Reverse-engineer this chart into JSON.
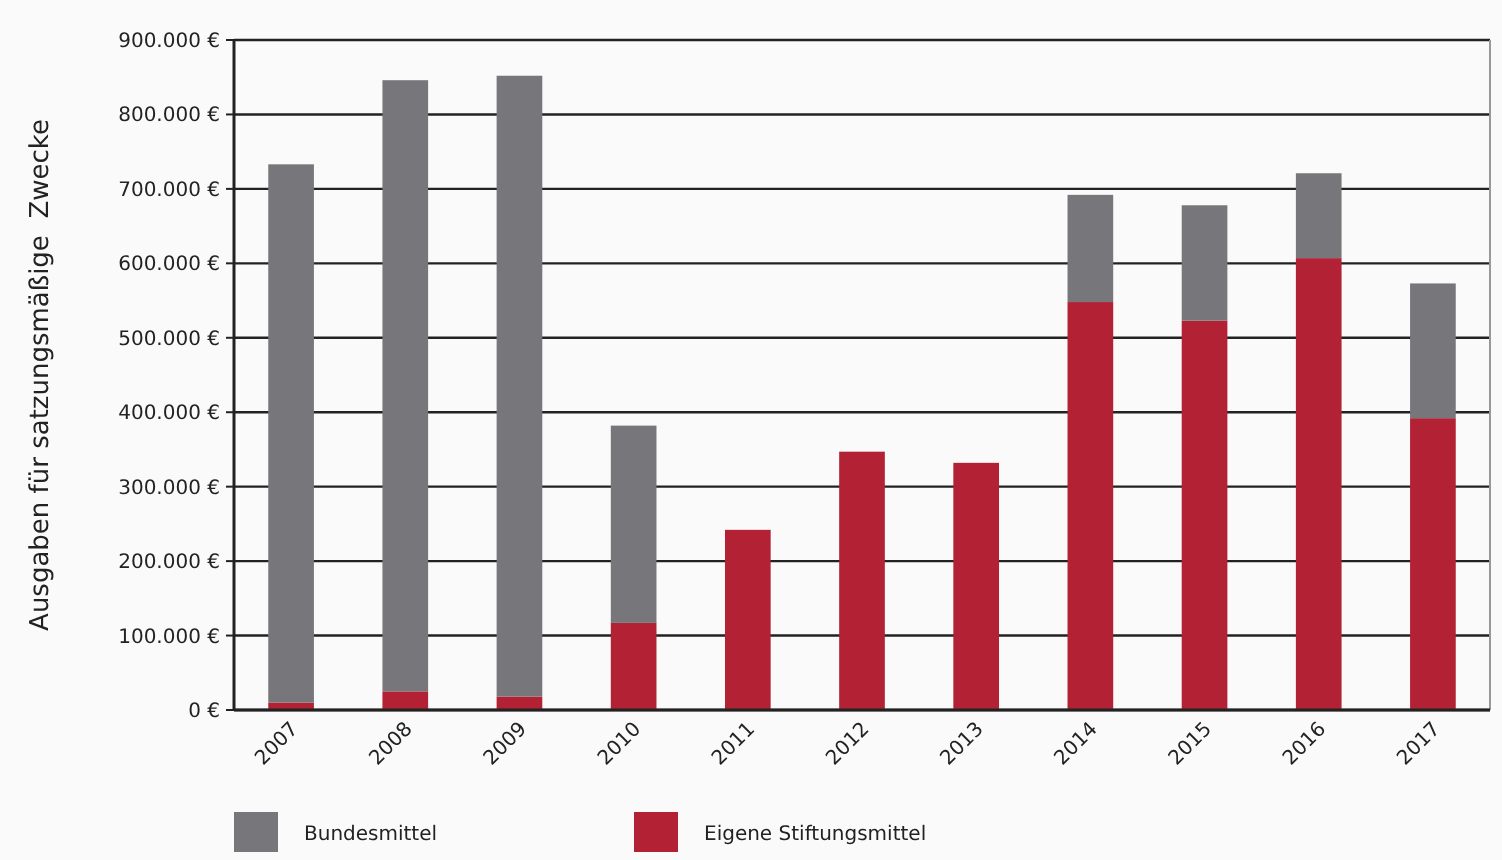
{
  "chart_data": {
    "type": "bar",
    "stacked": true,
    "ylabel": "Ausgaben für satzungsmäßige  Zwecke",
    "categories": [
      "2007",
      "2008",
      "2009",
      "2010",
      "2011",
      "2012",
      "2013",
      "2014",
      "2015",
      "2016",
      "2017"
    ],
    "series": [
      {
        "name": "Eigene Stiftungsmittel",
        "color": "#b22234",
        "values": [
          10000,
          25000,
          18000,
          117000,
          242000,
          347000,
          332000,
          548000,
          523000,
          607000,
          392000
        ]
      },
      {
        "name": "Bundesmittel",
        "color": "#77777b",
        "values": [
          723000,
          821000,
          834000,
          265000,
          null,
          null,
          null,
          144000,
          155000,
          114000,
          181000
        ]
      }
    ],
    "ylim": [
      0,
      900000
    ],
    "yticks": [
      {
        "value": 0,
        "label": "0 €"
      },
      {
        "value": 100000,
        "label": "100.000 €"
      },
      {
        "value": 200000,
        "label": "200.000 €"
      },
      {
        "value": 300000,
        "label": "300.000 €"
      },
      {
        "value": 400000,
        "label": "400.000 €"
      },
      {
        "value": 500000,
        "label": "500.000 €"
      },
      {
        "value": 600000,
        "label": "600.000 €"
      },
      {
        "value": 700000,
        "label": "700.000 €"
      },
      {
        "value": 800000,
        "label": "800.000 €"
      },
      {
        "value": 900000,
        "label": "900.000 €"
      }
    ],
    "grid": "y",
    "legend": "bottom"
  }
}
